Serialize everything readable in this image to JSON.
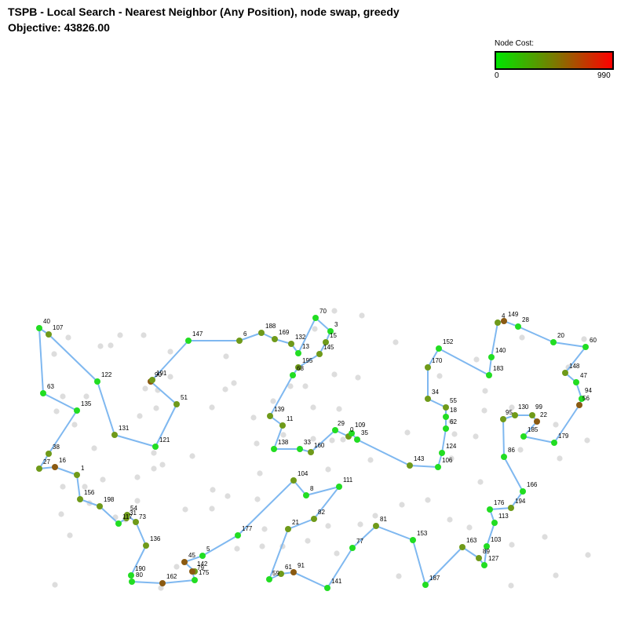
{
  "header": {
    "title": "TSPB - Local Search - Nearest Neighbor (Any Position), node swap, greedy",
    "objective": "Objective: 43826.00"
  },
  "legend": {
    "title": "Node Cost:",
    "min_label": "0",
    "max_label": "990",
    "gradient": [
      "#00e600",
      "#7a7a00",
      "#ff0000"
    ]
  },
  "colors": {
    "edge": "#7fb8f0",
    "unselected": "#dddddd",
    "cost_low": "#22dd22",
    "cost_mid": "#6f9a1a",
    "cost_high": "#8a5a12"
  },
  "chart_data": {
    "type": "network",
    "tour": [
      {
        "id": "40",
        "cost": "low"
      },
      {
        "id": "107",
        "cost": "mid"
      },
      {
        "id": "122",
        "cost": "low"
      },
      {
        "id": "131",
        "cost": "mid"
      },
      {
        "id": "121",
        "cost": "low"
      },
      {
        "id": "51",
        "cost": "mid"
      },
      {
        "id": "90",
        "cost": "high"
      },
      {
        "id": "191",
        "cost": "mid"
      },
      {
        "id": "147",
        "cost": "low"
      },
      {
        "id": "6",
        "cost": "mid"
      },
      {
        "id": "188",
        "cost": "mid"
      },
      {
        "id": "169",
        "cost": "mid"
      },
      {
        "id": "132",
        "cost": "mid"
      },
      {
        "id": "13",
        "cost": "low"
      },
      {
        "id": "70",
        "cost": "low"
      },
      {
        "id": "3",
        "cost": "low"
      },
      {
        "id": "15",
        "cost": "mid"
      },
      {
        "id": "145",
        "cost": "mid"
      },
      {
        "id": "195",
        "cost": "mid"
      },
      {
        "id": "68",
        "cost": "low"
      },
      {
        "id": "139",
        "cost": "mid"
      },
      {
        "id": "11",
        "cost": "mid"
      },
      {
        "id": "138",
        "cost": "low"
      },
      {
        "id": "33",
        "cost": "low"
      },
      {
        "id": "160",
        "cost": "mid"
      },
      {
        "id": "29",
        "cost": "low"
      },
      {
        "id": "0",
        "cost": "mid"
      },
      {
        "id": "109",
        "cost": "low"
      },
      {
        "id": "35",
        "cost": "low"
      },
      {
        "id": "143",
        "cost": "mid"
      },
      {
        "id": "106",
        "cost": "low"
      },
      {
        "id": "124",
        "cost": "low"
      },
      {
        "id": "62",
        "cost": "low"
      },
      {
        "id": "18",
        "cost": "low"
      },
      {
        "id": "55",
        "cost": "mid"
      },
      {
        "id": "34",
        "cost": "mid"
      },
      {
        "id": "170",
        "cost": "mid"
      },
      {
        "id": "152",
        "cost": "low"
      },
      {
        "id": "183",
        "cost": "low"
      },
      {
        "id": "140",
        "cost": "low"
      },
      {
        "id": "4",
        "cost": "mid"
      },
      {
        "id": "149",
        "cost": "high"
      },
      {
        "id": "28",
        "cost": "low"
      },
      {
        "id": "20",
        "cost": "low"
      },
      {
        "id": "60",
        "cost": "low"
      },
      {
        "id": "148",
        "cost": "mid"
      },
      {
        "id": "47",
        "cost": "low"
      },
      {
        "id": "94",
        "cost": "low"
      },
      {
        "id": "56",
        "cost": "high"
      },
      {
        "id": "179",
        "cost": "low"
      },
      {
        "id": "185",
        "cost": "low"
      },
      {
        "id": "22",
        "cost": "high"
      },
      {
        "id": "99",
        "cost": "mid"
      },
      {
        "id": "130",
        "cost": "mid"
      },
      {
        "id": "95",
        "cost": "mid"
      },
      {
        "id": "86",
        "cost": "low"
      },
      {
        "id": "166",
        "cost": "low"
      },
      {
        "id": "194",
        "cost": "mid"
      },
      {
        "id": "176",
        "cost": "low"
      },
      {
        "id": "113",
        "cost": "low"
      },
      {
        "id": "103",
        "cost": "low"
      },
      {
        "id": "127",
        "cost": "low"
      },
      {
        "id": "89",
        "cost": "mid"
      },
      {
        "id": "163",
        "cost": "mid"
      },
      {
        "id": "187",
        "cost": "low"
      },
      {
        "id": "153",
        "cost": "low"
      },
      {
        "id": "81",
        "cost": "mid"
      },
      {
        "id": "77",
        "cost": "low"
      },
      {
        "id": "141",
        "cost": "low"
      },
      {
        "id": "91",
        "cost": "high"
      },
      {
        "id": "61",
        "cost": "mid"
      },
      {
        "id": "59",
        "cost": "low"
      },
      {
        "id": "21",
        "cost": "mid"
      },
      {
        "id": "82",
        "cost": "mid"
      },
      {
        "id": "111",
        "cost": "low"
      },
      {
        "id": "8",
        "cost": "low"
      },
      {
        "id": "104",
        "cost": "mid"
      },
      {
        "id": "177",
        "cost": "low"
      },
      {
        "id": "5",
        "cost": "low"
      },
      {
        "id": "45",
        "cost": "high"
      },
      {
        "id": "142",
        "cost": "mid"
      },
      {
        "id": "79",
        "cost": "high"
      },
      {
        "id": "175",
        "cost": "low"
      },
      {
        "id": "162",
        "cost": "high"
      },
      {
        "id": "80",
        "cost": "low"
      },
      {
        "id": "190",
        "cost": "low"
      },
      {
        "id": "136",
        "cost": "mid"
      },
      {
        "id": "73",
        "cost": "mid"
      },
      {
        "id": "54",
        "cost": "mid"
      },
      {
        "id": "31",
        "cost": "mid"
      },
      {
        "id": "117",
        "cost": "low"
      },
      {
        "id": "198",
        "cost": "mid"
      },
      {
        "id": "156",
        "cost": "mid"
      },
      {
        "id": "1",
        "cost": "mid"
      },
      {
        "id": "16",
        "cost": "high"
      },
      {
        "id": "27",
        "cost": "mid"
      },
      {
        "id": "38",
        "cost": "mid"
      },
      {
        "id": "135",
        "cost": "low"
      },
      {
        "id": "63",
        "cost": "low"
      }
    ],
    "unselected_count": 100
  }
}
